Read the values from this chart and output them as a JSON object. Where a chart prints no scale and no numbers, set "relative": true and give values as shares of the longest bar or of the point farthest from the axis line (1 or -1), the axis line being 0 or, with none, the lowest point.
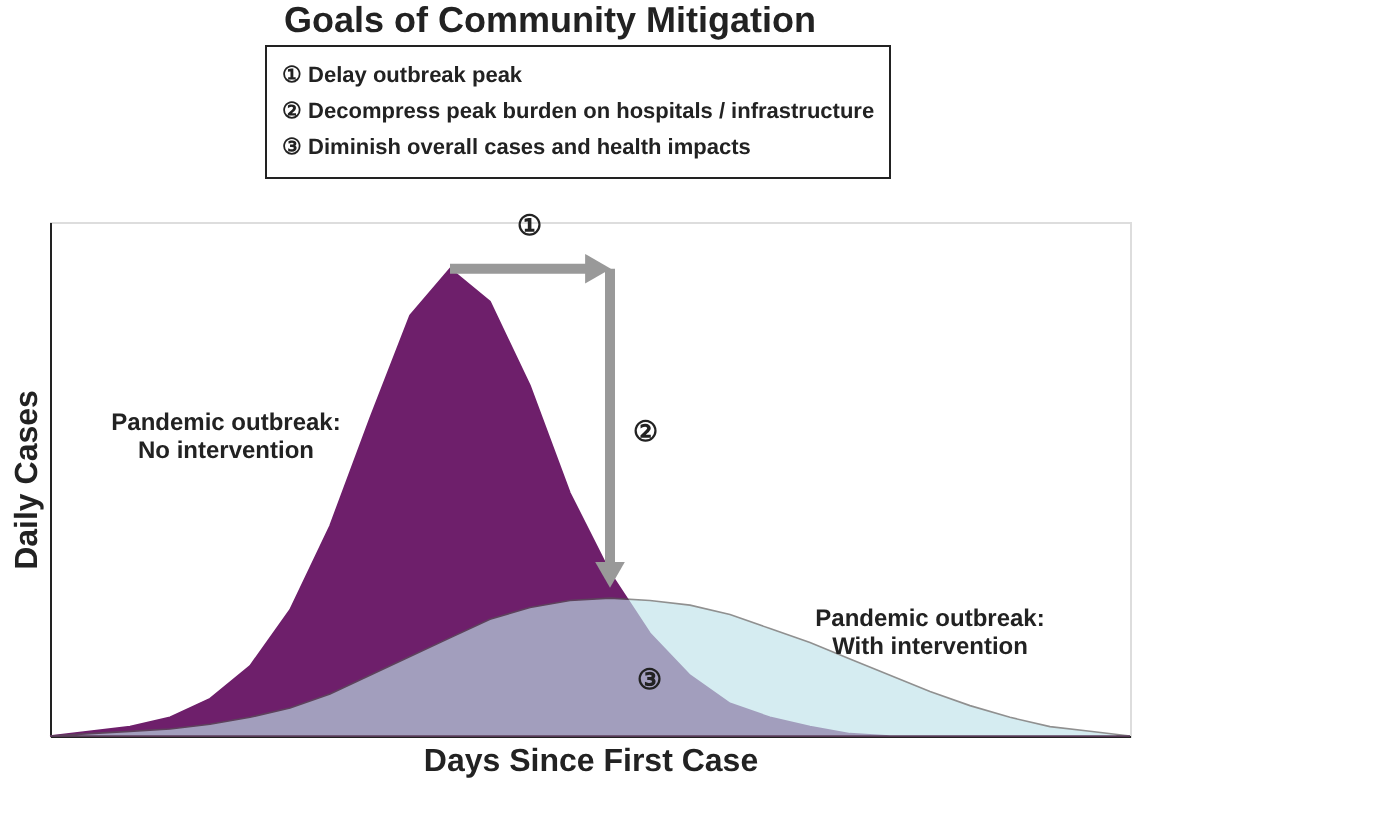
{
  "chart_data": {
    "type": "area",
    "relative": true,
    "title": "Goals of Community Mitigation",
    "xlabel": "Days Since First Case",
    "ylabel": "Daily Cases",
    "categories": [
      null,
      null,
      null,
      null,
      null,
      null,
      null,
      null,
      null,
      null,
      null,
      null,
      null,
      null,
      null,
      null,
      null,
      null,
      null,
      null,
      null,
      null,
      null,
      null,
      null,
      null,
      null,
      null
    ],
    "series": [
      {
        "name": "Pandemic outbreak:\nNo intervention",
        "color": "#6e1f6b",
        "values": [
          0.0,
          0.01,
          0.02,
          0.04,
          0.08,
          0.15,
          0.27,
          0.45,
          0.68,
          0.9,
          1.0,
          0.93,
          0.75,
          0.52,
          0.35,
          0.22,
          0.13,
          0.07,
          0.04,
          0.02,
          0.005,
          0.0,
          0.0,
          0.0,
          0.0,
          0.0,
          0.0,
          0.0
        ]
      },
      {
        "name": "Pandemic outbreak:\nWith intervention",
        "color": "#bfe3ea",
        "values": [
          0.0,
          0.005,
          0.01,
          0.015,
          0.025,
          0.04,
          0.06,
          0.09,
          0.13,
          0.17,
          0.21,
          0.25,
          0.275,
          0.29,
          0.295,
          0.29,
          0.28,
          0.26,
          0.23,
          0.2,
          0.165,
          0.13,
          0.095,
          0.065,
          0.04,
          0.02,
          0.01,
          0.0
        ]
      }
    ],
    "annotations": [
      "① Delay outbreak peak",
      "② Decompress peak burden on hospitals / infrastructure",
      "③ Diminish overall cases and health impacts",
      "①",
      "②",
      "③"
    ],
    "grid": false
  }
}
